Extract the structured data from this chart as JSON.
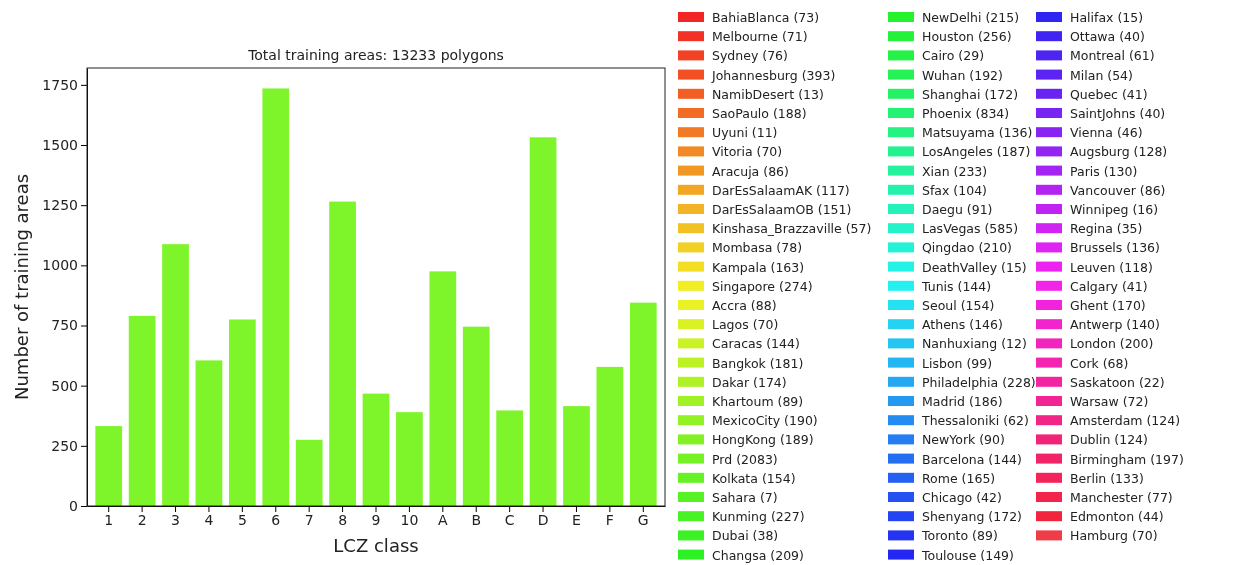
{
  "chart_data": [
    {
      "type": "bar",
      "title": "Total training areas: 13233 polygons",
      "xlabel": "LCZ class",
      "ylabel": "Number of training areas",
      "categories": [
        "1",
        "2",
        "3",
        "4",
        "5",
        "6",
        "7",
        "8",
        "9",
        "10",
        "A",
        "B",
        "C",
        "D",
        "E",
        "F",
        "G"
      ],
      "series": [
        {
          "color": "#7ef52a",
          "values": [
            332,
            790,
            1088,
            605,
            775,
            1735,
            275,
            1265,
            467,
            390,
            975,
            745,
            397,
            1532,
            415,
            578,
            845
          ]
        }
      ],
      "ylim": [
        0,
        1820
      ],
      "yticks": [
        0,
        250,
        500,
        750,
        1000,
        1250,
        1500,
        1750
      ],
      "grid": false
    },
    {
      "type": "other",
      "categories": [
        "BahiaBlanca (73)",
        "Melbourne (71)",
        "Sydney (76)",
        "Johannesburg (393)",
        "NamibDesert (13)",
        "SaoPaulo (188)",
        "Uyuni (11)",
        "Vitoria (70)",
        "Aracuja (86)",
        "DarEsSalaamAK (117)",
        "DarEsSalaamOB (151)",
        "Kinshasa_Brazzaville (57)",
        "Mombasa (78)",
        "Kampala (163)",
        "Singapore (274)",
        "Accra (88)",
        "Lagos (70)",
        "Caracas (144)",
        "Bangkok (181)",
        "Dakar (174)",
        "Khartoum (89)",
        "MexicoCity (190)",
        "HongKong (189)",
        "Prd (2083)",
        "Kolkata (154)",
        "Sahara (7)",
        "Kunming (227)",
        "Dubai (38)",
        "Changsa (209)",
        "NewDelhi (215)",
        "Houston (256)",
        "Cairo (29)",
        "Wuhan (192)",
        "Shanghai (172)",
        "Phoenix (834)",
        "Matsuyama (136)",
        "LosAngeles (187)",
        "Xian (233)",
        "Sfax (104)",
        "Daegu (91)",
        "LasVegas (585)",
        "Qingdao (210)",
        "DeathValley (15)",
        "Tunis (144)",
        "Seoul (154)",
        "Athens (146)",
        "Nanhuxiang (12)",
        "Lisbon (99)",
        "Philadelphia (228)",
        "Madrid (186)",
        "Thessaloniki (62)",
        "NewYork (90)",
        "Barcelona (144)",
        "Rome (165)",
        "Chicago (42)",
        "Shenyang (172)",
        "Toronto (89)",
        "Toulouse (149)",
        "Halifax (15)",
        "Ottawa (40)",
        "Montreal (61)",
        "Milan (54)",
        "Quebec (41)",
        "SaintJohns (40)",
        "Vienna (46)",
        "Augsburg (128)",
        "Paris (130)",
        "Vancouver (86)",
        "Winnipeg (16)",
        "Regina (35)",
        "Brussels (136)",
        "Leuven (118)",
        "Calgary (41)",
        "Ghent (170)",
        "Antwerp (140)",
        "London (200)",
        "Cork (68)",
        "Saskatoon (22)",
        "Warsaw (72)",
        "Amsterdam (124)",
        "Dublin (124)",
        "Birmingham (197)",
        "Berlin (133)",
        "Manchester (77)",
        "Edmonton (44)",
        "Hamburg (70)"
      ],
      "colors": [
        "#f22424",
        "#f23224",
        "#f24124",
        "#f24f24",
        "#f25e24",
        "#f26c24",
        "#f27a24",
        "#f28924",
        "#f29724",
        "#f2a624",
        "#f2b424",
        "#f2c224",
        "#f2d124",
        "#f2df24",
        "#f2ee24",
        "#e8f224",
        "#d9f224",
        "#cbf224",
        "#bcf224",
        "#aef224",
        "#a0f224",
        "#91f224",
        "#83f224",
        "#74f224",
        "#66f224",
        "#57f224",
        "#49f224",
        "#3bf224",
        "#2cf224",
        "#24f22a",
        "#24f239",
        "#24f247",
        "#24f255",
        "#24f264",
        "#24f272",
        "#24f281",
        "#24f28f",
        "#24f29d",
        "#24f2ac",
        "#24f2ba",
        "#24f2c9",
        "#24f2d7",
        "#24f2e5",
        "#24f0f2",
        "#24e2f2",
        "#24d3f2",
        "#24c5f2",
        "#24b6f2",
        "#24a8f2",
        "#2499f2",
        "#248bf2",
        "#247df2",
        "#246ef2",
        "#2460f2",
        "#2451f2",
        "#2443f2",
        "#2434f2",
        "#2426f2",
        "#3024f2",
        "#3f24f2",
        "#4d24f2",
        "#5c24f2",
        "#6a24f2",
        "#7824f2",
        "#8724f2",
        "#9524f2",
        "#a424f2",
        "#b224f2",
        "#c124f2",
        "#cf24f2",
        "#dd24f2",
        "#ec24f2",
        "#f224ea",
        "#f224db",
        "#f224cd",
        "#f224be",
        "#f224b0",
        "#f224a2",
        "#f22493",
        "#f22485",
        "#f22476",
        "#f22468",
        "#f22459",
        "#f2244b",
        "#f2243d",
        "#f03c48"
      ]
    }
  ]
}
